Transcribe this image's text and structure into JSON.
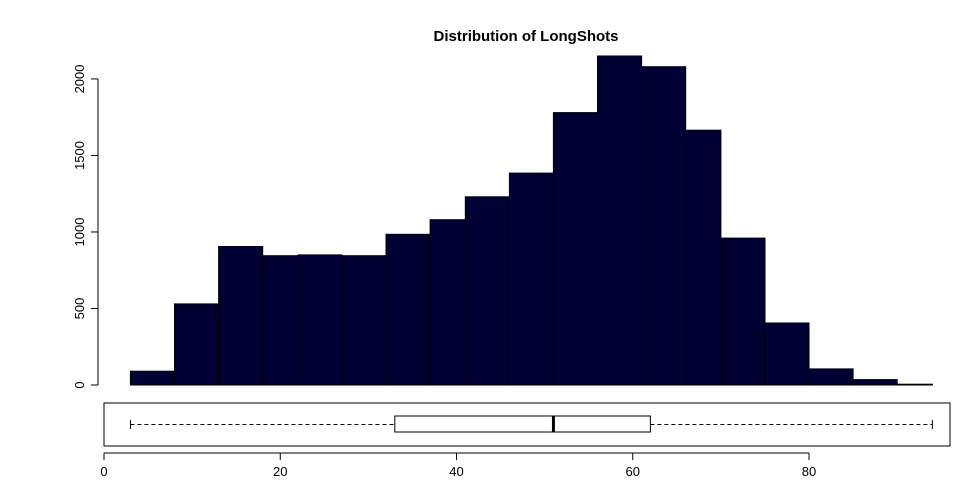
{
  "chart_data": [
    {
      "type": "histogram",
      "title": "Distribution of LongShots",
      "xlabel": "",
      "ylabel": "",
      "bin_edges": [
        3,
        8,
        13,
        18,
        22,
        27,
        32,
        37,
        41,
        46,
        51,
        56,
        61,
        66,
        70,
        75,
        80,
        85,
        90,
        94
      ],
      "counts": [
        90,
        530,
        905,
        845,
        850,
        845,
        985,
        1080,
        1230,
        1385,
        1780,
        2150,
        2080,
        1665,
        960,
        405,
        105,
        35,
        5
      ],
      "ylim": [
        0,
        2150
      ],
      "yticks": [
        "0",
        "500",
        "1000",
        "1500",
        "2000"
      ],
      "bar_color": "#000033",
      "grid": false
    },
    {
      "type": "boxplot",
      "orientation": "horizontal",
      "whisker_low": 3,
      "q1": 33,
      "median": 51,
      "q3": 62,
      "whisker_high": 94,
      "xlim": [
        0,
        96
      ],
      "xticks": [
        "0",
        "20",
        "40",
        "60",
        "80"
      ]
    }
  ]
}
